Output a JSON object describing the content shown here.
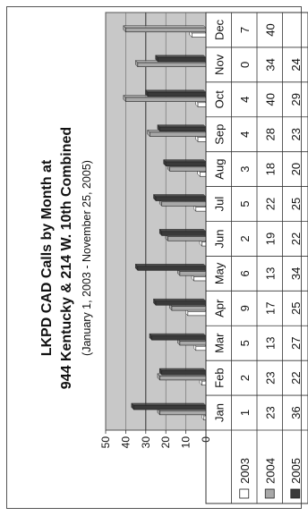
{
  "chart_data": {
    "type": "bar",
    "title": "LKPD CAD Calls by Month at",
    "title_line2": "944 Kentucky & 214 W. 10th Combined",
    "subtitle": "(January 1, 2003 - November 25, 2005)",
    "categories": [
      "Jan",
      "Feb",
      "Mar",
      "Apr",
      "May",
      "Jun",
      "Jul",
      "Aug",
      "Sep",
      "Oct",
      "Nov",
      "Dec"
    ],
    "series": [
      {
        "name": "2003",
        "values": [
          1,
          2,
          5,
          9,
          6,
          2,
          5,
          3,
          4,
          4,
          0,
          7
        ],
        "color": "#ffffff"
      },
      {
        "name": "2004",
        "values": [
          23,
          23,
          13,
          17,
          13,
          19,
          22,
          18,
          28,
          40,
          34,
          40
        ],
        "color": "#a8a8a8"
      },
      {
        "name": "2005",
        "values": [
          36,
          22,
          27,
          25,
          34,
          22,
          25,
          20,
          23,
          29,
          24,
          null
        ],
        "color": "#3a3a3a"
      }
    ],
    "ylim": [
      0,
      50
    ],
    "yticks": [
      "0",
      "10",
      "20",
      "30",
      "40",
      "50"
    ],
    "grid": true,
    "legend": "left, in data table",
    "plot_background": "#c8c8c8"
  }
}
